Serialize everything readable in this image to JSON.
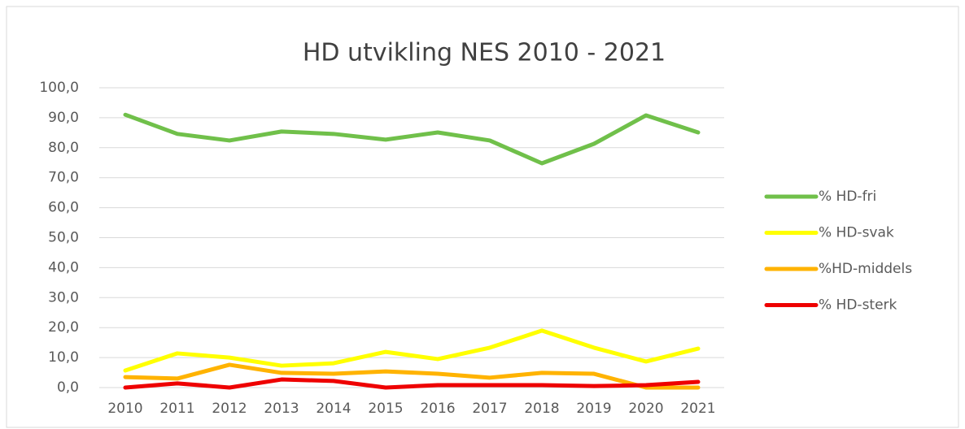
{
  "chart_data": {
    "type": "line",
    "title": "HD  utvikling NES 2010 - 2021",
    "categories": [
      "2010",
      "2011",
      "2012",
      "2013",
      "2014",
      "2015",
      "2016",
      "2017",
      "2018",
      "2019",
      "2020",
      "2021"
    ],
    "series": [
      {
        "name": "% HD-fri",
        "color": "#70c04a",
        "values": [
          91.0,
          84.6,
          82.4,
          85.4,
          84.6,
          82.7,
          85.1,
          82.4,
          74.8,
          81.3,
          90.8,
          85.1
        ]
      },
      {
        "name": "% HD-svak",
        "color": "#ffff00",
        "values": [
          5.7,
          11.4,
          10.0,
          7.3,
          8.1,
          11.9,
          9.5,
          13.3,
          19.0,
          13.3,
          8.7,
          13.0
        ]
      },
      {
        "name": "%HD-middels",
        "color": "#ffb300",
        "values": [
          3.5,
          3.0,
          7.6,
          4.9,
          4.6,
          5.4,
          4.6,
          3.3,
          4.9,
          4.6,
          0,
          0
        ]
      },
      {
        "name": "% HD-sterk",
        "color": "#ee0000",
        "values": [
          0,
          1.4,
          0,
          2.7,
          2.2,
          0,
          0.8,
          0.8,
          0.8,
          0.5,
          0.8,
          1.9
        ]
      }
    ],
    "ylim": [
      0,
      100
    ],
    "yticks": [
      {
        "value": 0,
        "label": "0,0"
      },
      {
        "value": 10,
        "label": "10,0"
      },
      {
        "value": 20,
        "label": "20,0"
      },
      {
        "value": 30,
        "label": "30,0"
      },
      {
        "value": 40,
        "label": "40,0"
      },
      {
        "value": 50,
        "label": "50,0"
      },
      {
        "value": 60,
        "label": "60,0"
      },
      {
        "value": 70,
        "label": "70,0"
      },
      {
        "value": 80,
        "label": "80,0"
      },
      {
        "value": 90,
        "label": "90,0"
      },
      {
        "value": 100,
        "label": "100,0"
      }
    ],
    "grid": true,
    "legend": "right"
  }
}
